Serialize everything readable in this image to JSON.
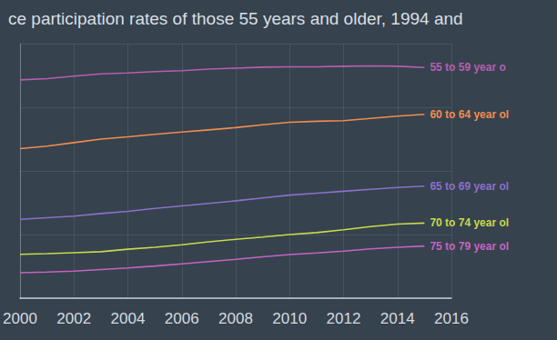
{
  "chart_data": {
    "type": "line",
    "title": "ce participation rates of those 55 years and older, 1994 and",
    "x": [
      2000,
      2001,
      2002,
      2003,
      2004,
      2005,
      2006,
      2007,
      2008,
      2009,
      2010,
      2011,
      2012,
      2013,
      2014,
      2015
    ],
    "series": [
      {
        "name": "55 to 59 year o",
        "color": "#b65fb2",
        "values": [
          68.6,
          69.0,
          69.8,
          70.5,
          70.8,
          71.2,
          71.5,
          72.0,
          72.3,
          72.6,
          72.7,
          72.7,
          72.9,
          73.0,
          72.9,
          72.5
        ]
      },
      {
        "name": "60 to 64 year ol",
        "color": "#f08c50",
        "values": [
          47.0,
          47.8,
          48.9,
          50.0,
          50.7,
          51.5,
          52.2,
          52.9,
          53.6,
          54.5,
          55.3,
          55.6,
          55.8,
          56.5,
          57.2,
          57.8
        ]
      },
      {
        "name": "65 to 69 year ol",
        "color": "#8d6fcc",
        "values": [
          24.8,
          25.3,
          25.8,
          26.6,
          27.3,
          28.2,
          29.0,
          29.8,
          30.6,
          31.5,
          32.4,
          33.0,
          33.6,
          34.2,
          34.8,
          35.2
        ]
      },
      {
        "name": "70 to 74 year ol",
        "color": "#c9d94c",
        "values": [
          13.8,
          14.0,
          14.3,
          14.6,
          15.4,
          16.0,
          16.8,
          17.7,
          18.5,
          19.2,
          20.0,
          20.6,
          21.5,
          22.5,
          23.3,
          23.6
        ]
      },
      {
        "name": "75 to 79 year ol",
        "color": "#c464c2",
        "values": [
          8.0,
          8.2,
          8.5,
          9.0,
          9.5,
          10.1,
          10.8,
          11.5,
          12.2,
          13.0,
          13.7,
          14.2,
          14.8,
          15.5,
          16.0,
          16.4
        ]
      }
    ],
    "xlim": [
      2000,
      2016
    ],
    "xticks": [
      2000,
      2002,
      2004,
      2006,
      2008,
      2010,
      2012,
      2014,
      2016
    ],
    "ylim": [
      0,
      80
    ],
    "yticks": [
      0,
      20,
      40,
      60,
      80
    ],
    "tick_labels": "x",
    "grid": true
  }
}
